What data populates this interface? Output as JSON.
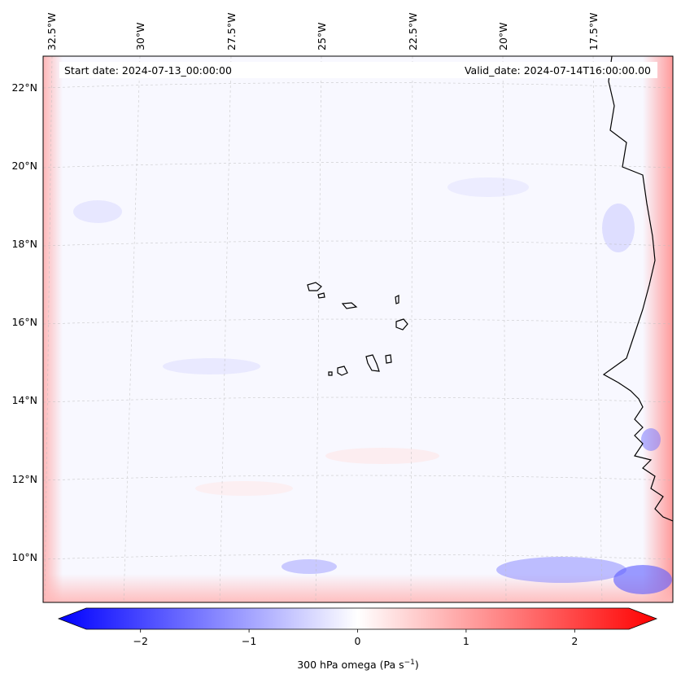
{
  "header": {
    "start_date": "Start date: 2024-07-13_00:00:00",
    "valid_date": "Valid_date: 2024-07-14T16:00:00.00"
  },
  "map": {
    "lon_labels": [
      "32.5°W",
      "30°W",
      "27.5°W",
      "25°W",
      "22.5°W",
      "20°W",
      "17.5°W"
    ],
    "lat_labels": [
      "22°N",
      "20°N",
      "18°N",
      "16°N",
      "14°N",
      "12°N",
      "10°N"
    ],
    "gridlines": true,
    "colors": {
      "negative": "#0000ff",
      "zero": "#ffffff",
      "positive": "#ff0000",
      "coast": "#000000"
    }
  },
  "colorbar": {
    "label": "300 hPa omega (Pa s",
    "label_sup": "−1",
    "label_end": ")",
    "range": [
      -2.7,
      2.7
    ],
    "ticks": [
      {
        "value": -2,
        "text": "−2"
      },
      {
        "value": -1,
        "text": "−1"
      },
      {
        "value": 0,
        "text": "0"
      },
      {
        "value": 1,
        "text": "1"
      },
      {
        "value": 2,
        "text": "2"
      }
    ]
  }
}
